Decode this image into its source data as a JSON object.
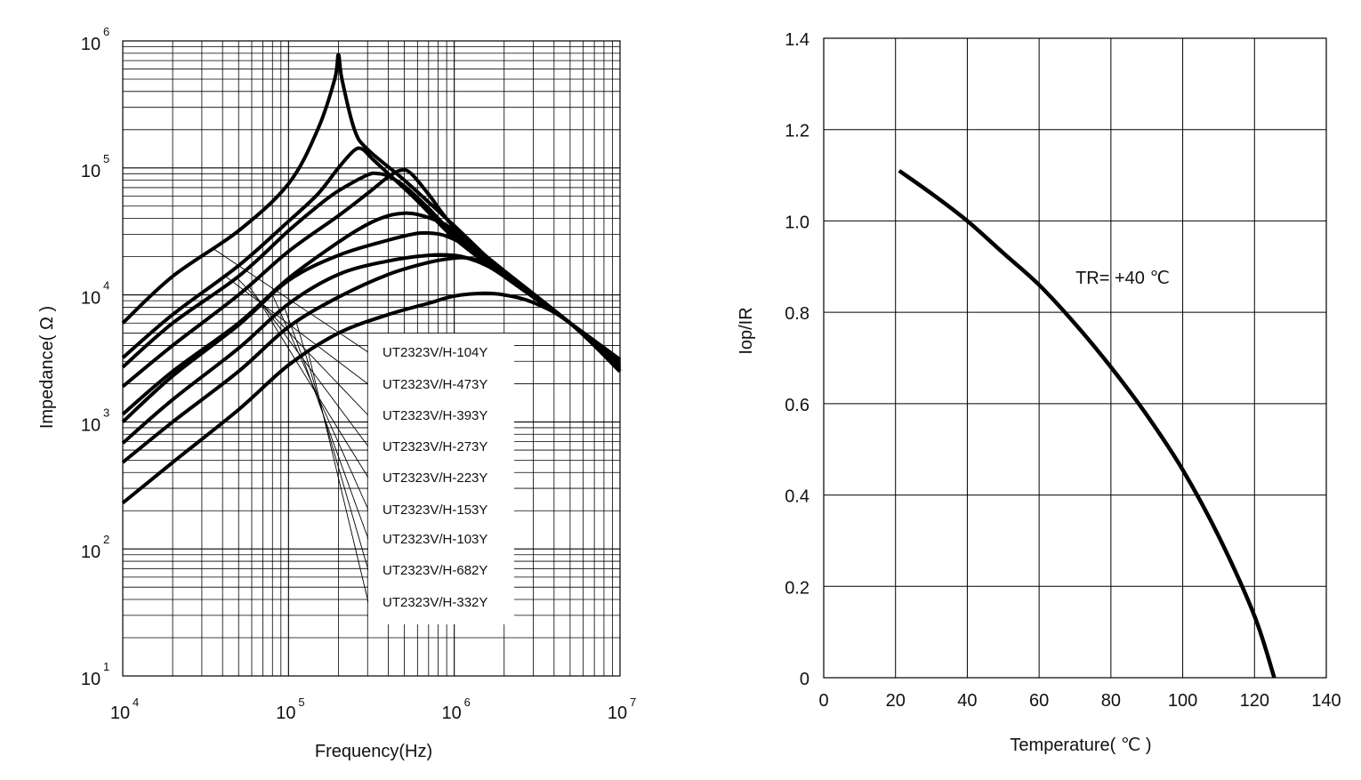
{
  "chart_data": [
    {
      "type": "line",
      "xlabel": "Frequency(Hz)",
      "ylabel": "Impedance( Ω )",
      "x_scale": "log",
      "y_scale": "log",
      "xlim": [
        10000,
        10000000
      ],
      "ylim": [
        10,
        1000000
      ],
      "grid": true,
      "x_ticks": [
        {
          "base": "10",
          "exp": "4",
          "value": 10000
        },
        {
          "base": "10",
          "exp": "5",
          "value": 100000
        },
        {
          "base": "10",
          "exp": "6",
          "value": 1000000
        },
        {
          "base": "10",
          "exp": "7",
          "value": 10000000
        }
      ],
      "y_ticks": [
        {
          "base": "10",
          "exp": "1",
          "value": 10
        },
        {
          "base": "10",
          "exp": "2",
          "value": 100
        },
        {
          "base": "10",
          "exp": "3",
          "value": 1000
        },
        {
          "base": "10",
          "exp": "4",
          "value": 10000
        },
        {
          "base": "10",
          "exp": "5",
          "value": 100000
        },
        {
          "base": "10",
          "exp": "6",
          "value": 1000000
        }
      ],
      "legend_position": "lower-center",
      "series": [
        {
          "name": "UT2323V/H-104Y",
          "x": [
            10000,
            20000,
            50000,
            100000,
            150000,
            190000,
            200000,
            210000,
            250000,
            300000,
            500000,
            1000000,
            2000000,
            5000000,
            10000000
          ],
          "y": [
            6000,
            14000,
            32000,
            75000,
            200000,
            500000,
            780000,
            500000,
            200000,
            140000,
            80000,
            35000,
            15000,
            6000,
            3000
          ]
        },
        {
          "name": "UT2323V/H-473Y",
          "x": [
            10000,
            20000,
            50000,
            100000,
            150000,
            200000,
            250000,
            280000,
            320000,
            400000,
            600000,
            1000000,
            2000000,
            5000000,
            10000000
          ],
          "y": [
            3200,
            7000,
            17000,
            38000,
            62000,
            100000,
            138000,
            140000,
            118000,
            90000,
            55000,
            28000,
            14000,
            6000,
            3100
          ]
        },
        {
          "name": "UT2323V/H-393Y",
          "x": [
            10000,
            20000,
            50000,
            100000,
            150000,
            200000,
            300000,
            350000,
            400000,
            500000,
            700000,
            1000000,
            2000000,
            5000000,
            10000000
          ],
          "y": [
            2700,
            6000,
            14000,
            32000,
            50000,
            66000,
            88000,
            90000,
            86000,
            72000,
            48000,
            30000,
            14500,
            6000,
            2900
          ]
        },
        {
          "name": "UT2323V/H-273Y",
          "x": [
            10000,
            20000,
            50000,
            100000,
            200000,
            300000,
            400000,
            480000,
            550000,
            700000,
            1000000,
            2000000,
            5000000,
            10000000
          ],
          "y": [
            1900,
            4000,
            10000,
            22000,
            42000,
            63000,
            85000,
            96000,
            90000,
            62000,
            34000,
            15000,
            6000,
            2800
          ]
        },
        {
          "name": "UT2323V/H-223Y",
          "x": [
            10000,
            20000,
            50000,
            100000,
            200000,
            300000,
            400000,
            500000,
            600000,
            800000,
            1000000,
            2000000,
            5000000,
            10000000
          ],
          "y": [
            1150,
            2500,
            6000,
            13500,
            26000,
            36000,
            42000,
            44000,
            43000,
            38000,
            32000,
            15500,
            6000,
            2700
          ]
        },
        {
          "name": "UT2323V/H-153Y",
          "x": [
            10000,
            20000,
            50000,
            100000,
            200000,
            400000,
            600000,
            750000,
            900000,
            1200000,
            2000000,
            5000000,
            10000000
          ],
          "y": [
            1000,
            2300,
            5800,
            13000,
            20500,
            27000,
            30500,
            30500,
            29000,
            24000,
            15000,
            6000,
            2600
          ]
        },
        {
          "name": "UT2323V/H-103Y",
          "x": [
            10000,
            20000,
            50000,
            100000,
            200000,
            400000,
            700000,
            1000000,
            1200000,
            1500000,
            2000000,
            5000000,
            10000000
          ],
          "y": [
            680,
            1500,
            3800,
            8500,
            14500,
            18500,
            20500,
            20500,
            19500,
            17500,
            14000,
            6000,
            2500
          ]
        },
        {
          "name": "UT2323V/H-682Y",
          "x": [
            10000,
            20000,
            50000,
            100000,
            200000,
            400000,
            700000,
            1000000,
            1200000,
            1500000,
            2000000,
            5000000,
            10000000
          ],
          "y": [
            480,
            1000,
            2500,
            5600,
            9600,
            14500,
            18000,
            19500,
            19500,
            18000,
            14000,
            6000,
            2500
          ]
        },
        {
          "name": "UT2323V/H-332Y",
          "x": [
            10000,
            20000,
            50000,
            100000,
            200000,
            400000,
            700000,
            1000000,
            1500000,
            2000000,
            3000000,
            5000000,
            10000000
          ],
          "y": [
            230,
            480,
            1250,
            2800,
            5000,
            7000,
            8600,
            9800,
            10300,
            10000,
            8700,
            6000,
            2500
          ]
        }
      ]
    },
    {
      "type": "line",
      "xlabel": "Temperature( ℃ )",
      "ylabel": "Iop/IR",
      "xlim": [
        0,
        140
      ],
      "ylim": [
        0,
        1.4
      ],
      "grid": true,
      "x_ticks": [
        "0",
        "20",
        "40",
        "60",
        "80",
        "100",
        "120",
        "140"
      ],
      "y_ticks": [
        "0",
        "0.2",
        "0.4",
        "0.6",
        "0.8",
        "1.0",
        "1.2",
        "1.4"
      ],
      "annotation": "TR= +40 ℃",
      "series": [
        {
          "x": [
            21,
            30,
            40,
            50,
            60,
            70,
            80,
            90,
            100,
            110,
            120,
            125.5
          ],
          "y": [
            1.11,
            1.06,
            1.0,
            0.93,
            0.86,
            0.775,
            0.68,
            0.575,
            0.455,
            0.31,
            0.135,
            0.0
          ]
        }
      ]
    }
  ]
}
